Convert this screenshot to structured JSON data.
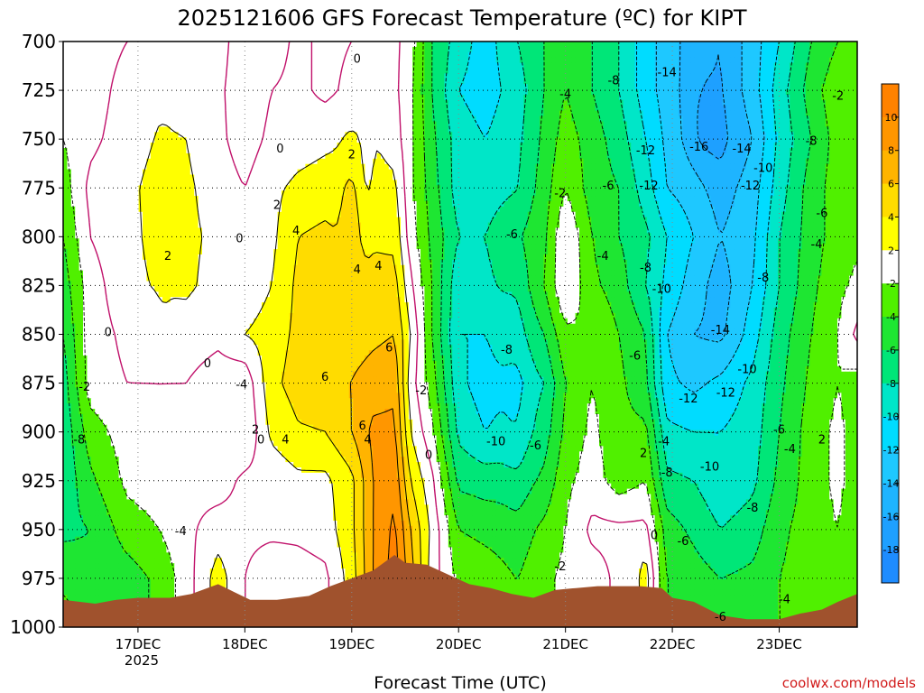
{
  "chart_data": {
    "type": "heatmap",
    "title": "2025121606 GFS Forecast Temperature (ºC) for KIPT",
    "xlabel": "Forecast Time (UTC)",
    "ylabel": "",
    "x_ticks": [
      "17DEC",
      "18DEC",
      "19DEC",
      "20DEC",
      "21DEC",
      "22DEC",
      "23DEC"
    ],
    "x_year_label": "2025",
    "x_range_days": [
      16.3,
      23.73
    ],
    "y_ticks": [
      700,
      725,
      750,
      775,
      800,
      825,
      850,
      875,
      900,
      925,
      950,
      975,
      1000
    ],
    "y_range_hpa": [
      700,
      1000
    ],
    "grid": true,
    "colorbar": {
      "levels": [
        -20,
        -18,
        -16,
        -14,
        -12,
        -10,
        -8,
        -6,
        -4,
        -2,
        2,
        4,
        6,
        8,
        10,
        12
      ],
      "tick_labels": [
        "-18",
        "-16",
        "-14",
        "-12",
        "-10",
        "-8",
        "-6",
        "-4",
        "-2",
        "2",
        "4",
        "6",
        "8",
        "10"
      ],
      "colors": [
        "#1e8cff",
        "#1ea0ff",
        "#1eb4ff",
        "#1ec8ff",
        "#00dcff",
        "#00e6c8",
        "#00e678",
        "#1ee632",
        "#50f000",
        "#ffffff",
        "#ffff00",
        "#ffdc00",
        "#ffb400",
        "#ff9600",
        "#ff8200"
      ]
    },
    "ground_color": "#a0522d",
    "terrain_hpa": [
      [
        16.3,
        986
      ],
      [
        16.6,
        988
      ],
      [
        16.8,
        986
      ],
      [
        17.0,
        985
      ],
      [
        17.3,
        985
      ],
      [
        17.5,
        983
      ],
      [
        17.75,
        978
      ],
      [
        17.9,
        982
      ],
      [
        18.05,
        986
      ],
      [
        18.3,
        986
      ],
      [
        18.6,
        984
      ],
      [
        18.8,
        979
      ],
      [
        19.0,
        975
      ],
      [
        19.2,
        971
      ],
      [
        19.4,
        963
      ],
      [
        19.5,
        967
      ],
      [
        19.7,
        968
      ],
      [
        19.9,
        973
      ],
      [
        20.1,
        978
      ],
      [
        20.3,
        980
      ],
      [
        20.5,
        983
      ],
      [
        20.7,
        985
      ],
      [
        20.9,
        981
      ],
      [
        21.1,
        980
      ],
      [
        21.3,
        979
      ],
      [
        21.5,
        979
      ],
      [
        21.7,
        979
      ],
      [
        21.9,
        980
      ],
      [
        22.0,
        985
      ],
      [
        22.2,
        987
      ],
      [
        22.45,
        994
      ],
      [
        22.7,
        996
      ],
      [
        23.0,
        996
      ],
      [
        23.2,
        993
      ],
      [
        23.4,
        991
      ],
      [
        23.55,
        987
      ],
      [
        23.73,
        983
      ]
    ],
    "anchors": [
      {
        "t": 16.3,
        "p": [
          0.0,
          -1.0,
          -2.0,
          -3.0,
          -4.0,
          -5.0,
          -6.0,
          -7.0,
          -7.5,
          -7.5,
          -6.5,
          -4.5,
          -3.0
        ]
      },
      {
        "t": 16.55,
        "p": [
          -1.0,
          -1.0,
          -0.5,
          0.5,
          0.0,
          -1.0,
          -1.0,
          -1.0,
          -3.0,
          -4.5,
          -6.0,
          -5.5,
          -4.0
        ]
      },
      {
        "t": 16.9,
        "p": [
          0.0,
          0.8,
          1.0,
          1.5,
          1.5,
          1.5,
          0.5,
          0.0,
          -1.0,
          -1.5,
          -3.0,
          -5.0,
          -5.0
        ]
      },
      {
        "t": 17.2,
        "p": [
          0.5,
          1.5,
          2.2,
          2.8,
          2.6,
          2.2,
          1.2,
          0.0,
          -0.5,
          -1.0,
          -2.0,
          -3.5,
          -3.5
        ]
      },
      {
        "t": 17.45,
        "p": [
          1.0,
          1.5,
          2.0,
          2.4,
          2.5,
          2.4,
          1.0,
          0.0,
          -0.8,
          -0.5,
          -0.5,
          -1.0,
          -1.0
        ]
      },
      {
        "t": 17.75,
        "p": [
          1.0,
          0.5,
          0.5,
          1.0,
          1.5,
          1.2,
          0.5,
          -1.0,
          -2.0,
          -1.0,
          1.0,
          3.0,
          3.0
        ]
      },
      {
        "t": 18.0,
        "p": [
          -1.5,
          -1.5,
          -1.0,
          0.0,
          0.5,
          0.5,
          2.0,
          -1.5,
          -2.0,
          0.5,
          0.5,
          0.0,
          0.0
        ]
      },
      {
        "t": 18.25,
        "p": [
          -1.0,
          0.0,
          0.5,
          1.5,
          1.5,
          2.0,
          3.0,
          3.5,
          2.5,
          0.5,
          0.5,
          -1.5,
          -1.5
        ]
      },
      {
        "t": 18.5,
        "p": [
          0.5,
          0.5,
          1.0,
          2.5,
          4.0,
          4.5,
          4.5,
          4.8,
          3.8,
          1.5,
          0.5,
          -1.0,
          -1.0
        ]
      },
      {
        "t": 18.75,
        "p": [
          -0.5,
          -0.5,
          1.5,
          3.0,
          4.5,
          5.5,
          5.0,
          5.0,
          4.0,
          1.5,
          1.0,
          -0.5,
          -0.5
        ]
      },
      {
        "t": 19.0,
        "p": [
          0.0,
          0.5,
          2.0,
          3.2,
          3.5,
          4.5,
          5.0,
          6.0,
          6.0,
          3.5,
          3.5,
          3.0,
          3.0
        ]
      },
      {
        "t": 19.2,
        "p": [
          0.5,
          1.0,
          2.0,
          3.0,
          3.8,
          4.5,
          5.5,
          7.0,
          8.5,
          8.0,
          8.0,
          8.0,
          8.0
        ]
      },
      {
        "t": 19.4,
        "p": [
          0.5,
          0.5,
          1.0,
          2.5,
          3.5,
          4.8,
          6.0,
          7.5,
          8.5,
          9.5,
          10.5,
          11.0,
          11.0
        ]
      },
      {
        "t": 19.55,
        "p": [
          -1.0,
          -1.5,
          -1.5,
          -1.5,
          -1.0,
          0.5,
          2.0,
          1.0,
          2.0,
          4.0,
          6.0,
          7.0,
          7.0
        ]
      },
      {
        "t": 19.75,
        "p": [
          -6.0,
          -6.0,
          -5.5,
          -5.0,
          -4.5,
          -4.0,
          -4.0,
          -3.0,
          -1.5,
          0.5,
          1.5,
          1.0,
          1.0
        ]
      },
      {
        "t": 20.0,
        "p": [
          -9.0,
          -10.0,
          -9.0,
          -9.0,
          -8.0,
          -9.5,
          -10.0,
          -9.5,
          -8.5,
          -6.5,
          -4.0,
          -2.5,
          -2.5
        ]
      },
      {
        "t": 20.25,
        "p": [
          -11.0,
          -11.0,
          -10.0,
          -9.0,
          -8.0,
          -8.5,
          -10.0,
          -11.0,
          -10.0,
          -7.0,
          -4.5,
          -3.0,
          -3.0
        ]
      },
      {
        "t": 20.55,
        "p": [
          -8.0,
          -9.0,
          -8.5,
          -8.0,
          -6.0,
          -7.0,
          -8.0,
          -9.5,
          -9.0,
          -7.0,
          -5.0,
          -4.0,
          -4.0
        ]
      },
      {
        "t": 20.8,
        "p": [
          -6.0,
          -6.0,
          -5.5,
          -5.0,
          -4.5,
          -4.0,
          -6.0,
          -8.0,
          -7.0,
          -5.5,
          -3.5,
          -2.5,
          -2.5
        ]
      },
      {
        "t": 21.0,
        "p": [
          -4.0,
          -4.0,
          -3.0,
          -2.0,
          0.0,
          0.0,
          -2.5,
          -4.0,
          -3.5,
          -2.5,
          -2.0,
          -1.5,
          -1.5
        ]
      },
      {
        "t": 21.25,
        "p": [
          -6.0,
          -6.0,
          -5.0,
          -5.0,
          -4.0,
          -3.5,
          -2.0,
          -2.0,
          -1.5,
          -1.0,
          0.5,
          -1.0,
          -1.0
        ]
      },
      {
        "t": 21.5,
        "p": [
          -8.0,
          -8.0,
          -7.0,
          -6.0,
          -6.0,
          -5.0,
          -4.0,
          -3.5,
          -3.5,
          -3.0,
          0.5,
          0.5,
          0.5
        ]
      },
      {
        "t": 21.75,
        "p": [
          -11.0,
          -11.0,
          -10.0,
          -9.0,
          -7.5,
          -8.0,
          -6.0,
          -5.5,
          -3.5,
          -2.0,
          0.5,
          2.0,
          2.0
        ]
      },
      {
        "t": 21.95,
        "p": [
          -13.0,
          -13.0,
          -12.5,
          -12.0,
          -10.0,
          -10.5,
          -12.0,
          -11.5,
          -9.5,
          -7.5,
          -5.0,
          -4.0,
          -4.0
        ]
      },
      {
        "t": 22.2,
        "p": [
          -15.0,
          -15.0,
          -15.0,
          -13.0,
          -12.0,
          -13.0,
          -14.0,
          -12.5,
          -10.0,
          -8.0,
          -6.5,
          -5.0,
          -5.0
        ]
      },
      {
        "t": 22.45,
        "p": [
          -16.0,
          -16.0,
          -16.5,
          -15.0,
          -14.0,
          -15.0,
          -14.5,
          -11.5,
          -10.0,
          -9.5,
          -8.0,
          -6.0,
          -6.0
        ]
      },
      {
        "t": 22.75,
        "p": [
          -13.0,
          -13.0,
          -14.0,
          -13.0,
          -12.5,
          -12.0,
          -11.0,
          -9.5,
          -9.0,
          -8.5,
          -7.0,
          -5.5,
          -5.5
        ]
      },
      {
        "t": 23.0,
        "p": [
          -10.0,
          -9.0,
          -9.5,
          -9.0,
          -8.0,
          -8.0,
          -7.0,
          -6.5,
          -6.0,
          -5.5,
          -4.5,
          -4.0,
          -4.0
        ]
      },
      {
        "t": 23.3,
        "p": [
          -6.0,
          -5.0,
          -6.0,
          -5.0,
          -5.0,
          -4.5,
          -4.0,
          -3.5,
          -3.0,
          -3.0,
          -3.0,
          -3.0,
          -3.0
        ]
      },
      {
        "t": 23.55,
        "p": [
          -4.0,
          -2.5,
          -3.0,
          -3.0,
          -3.0,
          -2.5,
          -2.0,
          -2.0,
          -1.5,
          -1.5,
          -2.0,
          -2.5,
          -2.5
        ]
      },
      {
        "t": 23.73,
        "p": [
          -3.0,
          -2.0,
          -3.0,
          -3.0,
          -2.5,
          -1.5,
          0.5,
          -3.0,
          -3.0,
          -3.0,
          -3.5,
          -4.0,
          -4.0
        ]
      }
    ],
    "bumps": [
      {
        "t": 18.98,
        "p": 800,
        "dt": 0.08,
        "dp": 40,
        "a": 1.8
      },
      {
        "t": 19.15,
        "p": 760,
        "dt": 0.05,
        "dp": 30,
        "a": -1.5
      },
      {
        "t": 17.25,
        "p": 795,
        "dt": 0.05,
        "dp": 30,
        "a": 0.8
      },
      {
        "t": 20.55,
        "p": 870,
        "dt": 0.12,
        "dp": 60,
        "a": -1.0
      },
      {
        "t": 22.3,
        "p": 740,
        "dt": 0.15,
        "dp": 25,
        "a": -1.0
      },
      {
        "t": 21.75,
        "p": 975,
        "dt": 0.06,
        "dp": 15,
        "a": 1.0
      }
    ],
    "contour_labels": [
      {
        "t": 19.05,
        "p": 709,
        "text": "0"
      },
      {
        "t": 21.0,
        "p": 727,
        "text": "-4"
      },
      {
        "t": 21.45,
        "p": 720,
        "text": "-8"
      },
      {
        "t": 21.95,
        "p": 716,
        "text": "-14"
      },
      {
        "t": 23.55,
        "p": 728,
        "text": "-2"
      },
      {
        "t": 18.33,
        "p": 755,
        "text": "0"
      },
      {
        "t": 19.0,
        "p": 758,
        "text": "2"
      },
      {
        "t": 21.75,
        "p": 756,
        "text": "-12"
      },
      {
        "t": 22.25,
        "p": 754,
        "text": "-16"
      },
      {
        "t": 22.65,
        "p": 755,
        "text": "-14"
      },
      {
        "t": 23.3,
        "p": 751,
        "text": "-8"
      },
      {
        "t": 22.85,
        "p": 765,
        "text": "-10"
      },
      {
        "t": 20.95,
        "p": 778,
        "text": "-2"
      },
      {
        "t": 21.4,
        "p": 774,
        "text": "-6"
      },
      {
        "t": 21.78,
        "p": 774,
        "text": "-12"
      },
      {
        "t": 22.73,
        "p": 774,
        "text": "-12"
      },
      {
        "t": 18.3,
        "p": 784,
        "text": "2"
      },
      {
        "t": 23.4,
        "p": 788,
        "text": "-6"
      },
      {
        "t": 18.48,
        "p": 797,
        "text": "4"
      },
      {
        "t": 17.95,
        "p": 801,
        "text": "0"
      },
      {
        "t": 20.5,
        "p": 799,
        "text": "-6"
      },
      {
        "t": 23.35,
        "p": 804,
        "text": "-4"
      },
      {
        "t": 17.28,
        "p": 810,
        "text": "2"
      },
      {
        "t": 21.35,
        "p": 810,
        "text": "-4"
      },
      {
        "t": 21.75,
        "p": 816,
        "text": "-8"
      },
      {
        "t": 19.05,
        "p": 817,
        "text": "4"
      },
      {
        "t": 19.25,
        "p": 815,
        "text": "4"
      },
      {
        "t": 22.85,
        "p": 821,
        "text": "-8"
      },
      {
        "t": 21.9,
        "p": 827,
        "text": "-10"
      },
      {
        "t": 16.72,
        "p": 849,
        "text": "0"
      },
      {
        "t": 22.45,
        "p": 848,
        "text": "-14"
      },
      {
        "t": 19.35,
        "p": 857,
        "text": "6"
      },
      {
        "t": 20.45,
        "p": 858,
        "text": "-8"
      },
      {
        "t": 21.65,
        "p": 861,
        "text": "-6"
      },
      {
        "t": 22.7,
        "p": 868,
        "text": "-10"
      },
      {
        "t": 17.65,
        "p": 865,
        "text": "0"
      },
      {
        "t": 18.75,
        "p": 872,
        "text": "6"
      },
      {
        "t": 16.5,
        "p": 877,
        "text": "-2"
      },
      {
        "t": 17.97,
        "p": 876,
        "text": "-4"
      },
      {
        "t": 19.65,
        "p": 879,
        "text": "-2"
      },
      {
        "t": 22.15,
        "p": 883,
        "text": "-12"
      },
      {
        "t": 22.5,
        "p": 880,
        "text": "-12"
      },
      {
        "t": 19.1,
        "p": 897,
        "text": "6"
      },
      {
        "t": 18.1,
        "p": 899,
        "text": "2"
      },
      {
        "t": 23.0,
        "p": 899,
        "text": "-6"
      },
      {
        "t": 16.45,
        "p": 904,
        "text": "-8"
      },
      {
        "t": 18.15,
        "p": 904,
        "text": "0"
      },
      {
        "t": 18.38,
        "p": 904,
        "text": "4"
      },
      {
        "t": 19.15,
        "p": 904,
        "text": "4"
      },
      {
        "t": 20.35,
        "p": 905,
        "text": "-10"
      },
      {
        "t": 20.72,
        "p": 907,
        "text": "-6"
      },
      {
        "t": 21.92,
        "p": 905,
        "text": "-4"
      },
      {
        "t": 23.1,
        "p": 909,
        "text": "-4"
      },
      {
        "t": 23.4,
        "p": 904,
        "text": "2"
      },
      {
        "t": 19.72,
        "p": 912,
        "text": "0"
      },
      {
        "t": 21.73,
        "p": 911,
        "text": "2"
      },
      {
        "t": 22.35,
        "p": 918,
        "text": "-10"
      },
      {
        "t": 21.95,
        "p": 921,
        "text": "-8"
      },
      {
        "t": 22.75,
        "p": 939,
        "text": "-8"
      },
      {
        "t": 17.4,
        "p": 951,
        "text": "-4"
      },
      {
        "t": 21.83,
        "p": 953,
        "text": "0"
      },
      {
        "t": 22.1,
        "p": 956,
        "text": "-6"
      },
      {
        "t": 20.95,
        "p": 969,
        "text": "-2"
      },
      {
        "t": 23.05,
        "p": 986,
        "text": "-4"
      },
      {
        "t": 22.45,
        "p": 995,
        "text": "-6"
      }
    ]
  },
  "credit_text": "coolwx.com/models",
  "mauve_contour_color": "#c0106a",
  "solid_contour_color": "#000000",
  "dashed_contour_color": "#000000"
}
